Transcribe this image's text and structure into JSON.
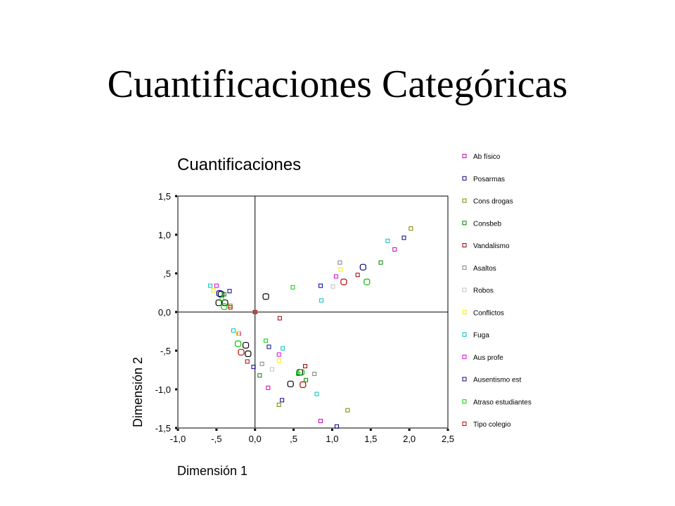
{
  "slide": {
    "title": "Cuantificaciones Categóricas"
  },
  "chart_data": {
    "type": "scatter",
    "title": "Cuantificaciones",
    "xlabel": "Dimensión 1",
    "ylabel": "Dimensión 2",
    "xlim": [
      -1.0,
      2.5
    ],
    "ylim": [
      -1.5,
      1.5
    ],
    "x_ticks": [
      -1.0,
      -0.5,
      0.0,
      0.5,
      1.0,
      1.5,
      2.0,
      2.5
    ],
    "x_tick_labels": [
      "-1,0",
      "-,5",
      "0,0",
      ",5",
      "1,0",
      "1,5",
      "2,0",
      "2,5"
    ],
    "y_ticks": [
      1.5,
      1.0,
      0.5,
      0.0,
      -0.5,
      -1.0,
      -1.5
    ],
    "y_tick_labels": [
      "1,5",
      "1,0",
      ",5",
      "0,0",
      "-,5",
      "-1,0",
      "-1,5"
    ],
    "reference_lines": {
      "x": 0,
      "y": 0
    },
    "grid": false,
    "legend_position": "right",
    "series": [
      {
        "name": "Ab físico",
        "color": "#c000c0",
        "points": [
          [
            1.81,
            0.81
          ],
          [
            -0.21,
            -0.28
          ],
          [
            0.17,
            -0.98
          ],
          [
            0.85,
            -1.41
          ]
        ]
      },
      {
        "name": "Posarmas",
        "color": "#000080",
        "points": [
          [
            1.93,
            0.96
          ],
          [
            -0.33,
            0.27
          ],
          [
            0.18,
            -0.45
          ],
          [
            1.06,
            -1.48
          ]
        ]
      },
      {
        "name": "Cons drogas",
        "color": "#808000",
        "points": [
          [
            2.02,
            1.08
          ],
          [
            -0.32,
            0.08
          ],
          [
            0.31,
            -1.2
          ],
          [
            1.2,
            -1.27
          ]
        ]
      },
      {
        "name": "Consbeb",
        "color": "#008000",
        "points": [
          [
            1.63,
            0.64
          ],
          [
            -0.4,
            0.23
          ],
          [
            0.06,
            -0.82
          ],
          [
            0.66,
            -0.88
          ]
        ]
      },
      {
        "name": "Vandalismo",
        "color": "#a00000",
        "points": [
          [
            1.33,
            0.48
          ],
          [
            -0.32,
            0.06
          ],
          [
            -0.1,
            -0.64
          ],
          [
            0.32,
            -0.08
          ],
          [
            0.65,
            -0.7
          ],
          [
            0.0,
            0.0
          ]
        ]
      },
      {
        "name": "Asaltos",
        "color": "#808080",
        "points": [
          [
            1.1,
            0.64
          ],
          [
            0.09,
            -0.67
          ],
          [
            0.77,
            -0.8
          ]
        ]
      },
      {
        "name": "Robos",
        "color": "#c0c0c0",
        "points": [
          [
            1.01,
            0.33
          ],
          [
            0.22,
            -0.74
          ]
        ]
      },
      {
        "name": "Conflictos",
        "color": "#f0f000",
        "points": [
          [
            1.11,
            0.55
          ],
          [
            -0.54,
            0.28
          ],
          [
            -0.22,
            -0.28
          ],
          [
            0.31,
            -0.63
          ]
        ]
      },
      {
        "name": "Fuga",
        "color": "#00c0c0",
        "points": [
          [
            1.72,
            0.92
          ],
          [
            -0.58,
            0.34
          ],
          [
            -0.28,
            -0.24
          ],
          [
            0.86,
            0.15
          ],
          [
            0.36,
            -0.47
          ],
          [
            0.8,
            -1.06
          ]
        ]
      },
      {
        "name": "Aus profe",
        "color": "#e000e0",
        "points": [
          [
            1.05,
            0.46
          ],
          [
            -0.5,
            0.34
          ],
          [
            0.31,
            -0.55
          ]
        ]
      },
      {
        "name": "Ausentismo est",
        "color": "#000090",
        "points": [
          [
            0.85,
            0.34
          ],
          [
            -0.02,
            -0.71
          ],
          [
            0.35,
            -1.14
          ]
        ]
      },
      {
        "name": "Atraso estudiantes",
        "color": "#00d000",
        "points": [
          [
            0.49,
            0.32
          ],
          [
            -0.43,
            0.17
          ],
          [
            0.14,
            -0.37
          ],
          [
            0.56,
            -0.8
          ]
        ]
      },
      {
        "name": "Tipo colegio",
        "color": "#c00000",
        "points": [
          [
            0.0,
            0.0
          ]
        ]
      }
    ],
    "category_markers": [
      {
        "color": "#000000",
        "points": [
          [
            -0.47,
            0.12
          ],
          [
            -0.39,
            0.12
          ],
          [
            -0.44,
            0.23
          ],
          [
            0.14,
            0.2
          ],
          [
            -0.12,
            -0.43
          ],
          [
            -0.09,
            -0.54
          ],
          [
            0.46,
            -0.93
          ],
          [
            0.58,
            -0.78
          ]
        ]
      },
      {
        "color": "#000080",
        "points": [
          [
            1.4,
            0.58
          ],
          [
            -0.46,
            0.24
          ]
        ]
      },
      {
        "color": "#00c000",
        "points": [
          [
            1.45,
            0.39
          ],
          [
            -0.4,
            0.07
          ],
          [
            -0.22,
            -0.41
          ],
          [
            0.6,
            -0.78
          ]
        ]
      },
      {
        "color": "#c00000",
        "points": [
          [
            1.15,
            0.39
          ],
          [
            -0.18,
            -0.52
          ],
          [
            0.62,
            -0.94
          ]
        ]
      }
    ]
  }
}
